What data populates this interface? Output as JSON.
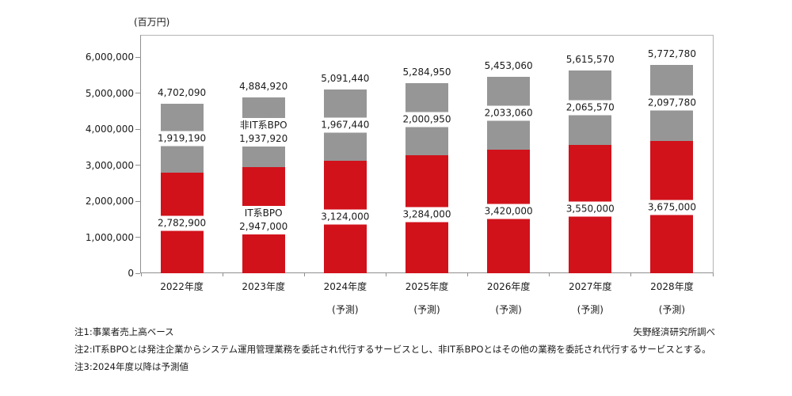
{
  "unit_label": "(百万円)",
  "source_credit": "矢野経済研究所調べ",
  "notes": [
    "注1:事業者売上高ベース",
    "注2:IT系BPOとは発注企業からシステム運用管理業務を委託され代行するサービスとし、非IT系BPOとはその他の業務を委託され代行するサービスとする。",
    "注3:2024年度以降は予測値"
  ],
  "chart_data": {
    "type": "bar",
    "stacked": true,
    "title": "",
    "unit": "百万円",
    "categories": [
      "2022年度",
      "2023年度",
      "2024年度",
      "2025年度",
      "2026年度",
      "2027年度",
      "2028年度"
    ],
    "category_sublabels": [
      "",
      "",
      "(予測)",
      "(予測)",
      "(予測)",
      "(予測)",
      "(予測)"
    ],
    "series": [
      {
        "name": "IT系BPO",
        "color": "#d1121b",
        "values": [
          2782900,
          2947000,
          3124000,
          3284000,
          3420000,
          3550000,
          3675000
        ]
      },
      {
        "name": "非IT系BPO",
        "color": "#969696",
        "values": [
          1919190,
          1937920,
          1967440,
          2000950,
          2033060,
          2065570,
          2097780
        ]
      }
    ],
    "totals": [
      4702090,
      4884920,
      5091440,
      5284950,
      5453060,
      5615570,
      5772780
    ],
    "series_name_shown_on_category_index": 1,
    "y_axis": {
      "min": 0,
      "max": 6000000,
      "step": 1000000
    },
    "grid": false,
    "legend_position": "inline-on-bars",
    "text_color": "#1a1a1a"
  }
}
